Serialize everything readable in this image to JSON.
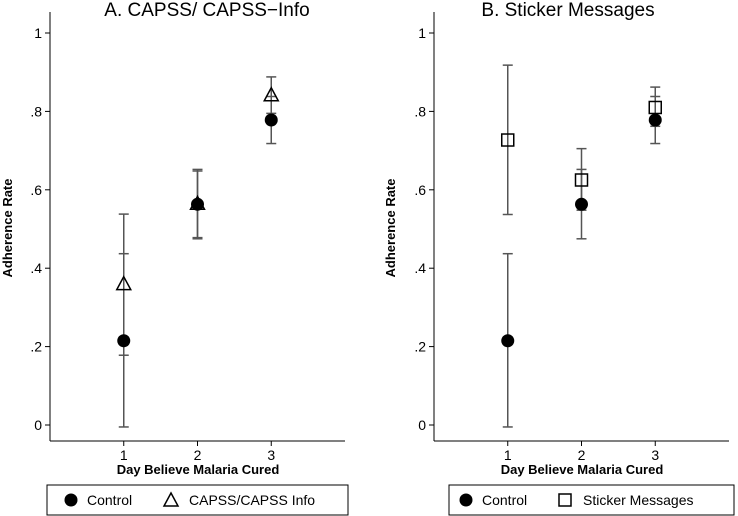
{
  "chart_data": [
    {
      "type": "scatter",
      "title": "A. CAPSS/ CAPSS−Info",
      "xlabel": "Day Believe Malaria Cured",
      "ylabel": "Adherence Rate",
      "xlim": [
        0,
        4
      ],
      "ylim": [
        0,
        1
      ],
      "x_ticks": [
        "1",
        "2",
        "3"
      ],
      "y_ticks": [
        "0",
        ".2",
        ".4",
        ".6",
        ".8",
        "1"
      ],
      "series": [
        {
          "name": "Control",
          "marker": "filled-circle",
          "x": [
            1,
            2,
            3
          ],
          "y": [
            0.215,
            0.563,
            0.778
          ],
          "ci_low": [
            -0.005,
            0.475,
            0.718
          ],
          "ci_high": [
            0.437,
            0.652,
            0.838
          ]
        },
        {
          "name": "CAPSS/CAPSS Info",
          "marker": "hollow-triangle",
          "x": [
            1,
            2,
            3
          ],
          "y": [
            0.358,
            0.563,
            0.84
          ],
          "ci_low": [
            0.178,
            0.478,
            0.795
          ],
          "ci_high": [
            0.538,
            0.648,
            0.888
          ]
        }
      ],
      "legend": [
        "Control",
        "CAPSS/CAPSS Info"
      ],
      "legend_position": "bottom"
    },
    {
      "type": "scatter",
      "title": "B. Sticker Messages",
      "xlabel": "Day Believe Malaria Cured",
      "ylabel": "Adherence Rate",
      "xlim": [
        0,
        4
      ],
      "ylim": [
        0,
        1
      ],
      "x_ticks": [
        "1",
        "2",
        "3"
      ],
      "y_ticks": [
        "0",
        ".2",
        ".4",
        ".6",
        ".8",
        "1"
      ],
      "series": [
        {
          "name": "Control",
          "marker": "filled-circle",
          "x": [
            1,
            2,
            3
          ],
          "y": [
            0.215,
            0.563,
            0.778
          ],
          "ci_low": [
            -0.005,
            0.475,
            0.718
          ],
          "ci_high": [
            0.437,
            0.652,
            0.838
          ]
        },
        {
          "name": "Sticker Messages",
          "marker": "hollow-square",
          "x": [
            1,
            2,
            3
          ],
          "y": [
            0.727,
            0.625,
            0.81
          ],
          "ci_low": [
            0.537,
            0.548,
            0.762
          ],
          "ci_high": [
            0.918,
            0.705,
            0.862
          ]
        }
      ],
      "legend": [
        "Control",
        "Sticker Messages"
      ],
      "legend_position": "bottom"
    }
  ]
}
